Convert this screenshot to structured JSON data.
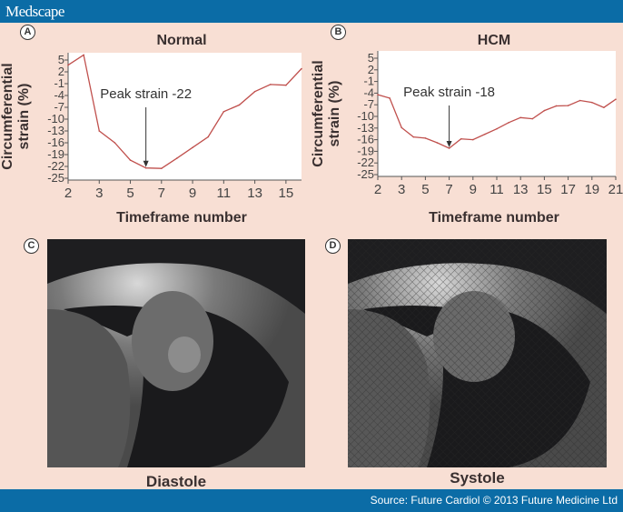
{
  "header": {
    "logo": "Medscape"
  },
  "footer": {
    "source": "Source: Future Cardiol © 2013 Future Medicine Ltd"
  },
  "panels": {
    "a": {
      "letter": "A"
    },
    "b": {
      "letter": "B"
    },
    "c": {
      "letter": "C",
      "caption": "Diastole"
    },
    "d": {
      "letter": "D",
      "caption": "Systole"
    }
  },
  "colors": {
    "header": "#0b6ca6",
    "background": "#f8dfd4",
    "line": "#c0504d",
    "plot_bg": "#ffffff"
  },
  "chart_data": [
    {
      "type": "line",
      "title": "Normal",
      "xlabel": "Timeframe number",
      "ylabel": "Circumferential strain (%)",
      "x_tick_labels": [
        "2",
        "3",
        "5",
        "7",
        "9",
        "11",
        "13",
        "15"
      ],
      "y_ticks": [
        5,
        2,
        -1,
        -4,
        -7,
        -10,
        -13,
        -16,
        -19,
        -22,
        -25
      ],
      "ylim": [
        -25,
        5
      ],
      "grid": false,
      "values": [
        3.7,
        6.3,
        -13,
        -16,
        -20.4,
        -22.4,
        -22.5,
        -19.9,
        -17.2,
        -14.5,
        -8.1,
        -6.4,
        -3,
        -1.2,
        -1.4,
        2.8
      ],
      "annotation": {
        "text": "Peak strain -22",
        "point_index": 5
      }
    },
    {
      "type": "line",
      "title": "HCM",
      "xlabel": "Timeframe number",
      "ylabel": "Circumferential strain (%)",
      "x_tick_labels": [
        "2",
        "3",
        "5",
        "7",
        "9",
        "11",
        "13",
        "15",
        "17",
        "19",
        "21"
      ],
      "y_ticks": [
        5,
        2,
        -1,
        -4,
        -7,
        -10,
        -13,
        -16,
        -19,
        -22,
        -25
      ],
      "ylim": [
        -25,
        5
      ],
      "grid": false,
      "values": [
        -4.4,
        -5.3,
        -12.9,
        -15.3,
        -15.6,
        -16.8,
        -18.2,
        -15.8,
        -16,
        -14.6,
        -13.2,
        -11.6,
        -10.3,
        -10.6,
        -8.5,
        -7.3,
        -7.2,
        -5.9,
        -6.4,
        -7.7,
        -5.6
      ],
      "annotation": {
        "text": "Peak strain -18",
        "point_index": 6
      }
    }
  ]
}
